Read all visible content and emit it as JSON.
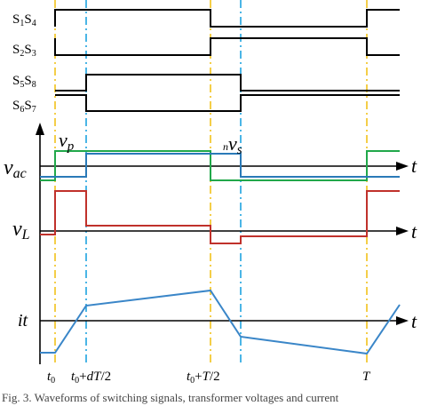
{
  "switch_labels": {
    "s1s4": {
      "main": "S1S4"
    },
    "s2s3": {
      "main": "S2S3"
    },
    "s5s8": {
      "main": "S5S8"
    },
    "s6s7": {
      "main": "S6S7"
    }
  },
  "waveform_labels": {
    "vp": "vp",
    "nvs": "nvs",
    "vac": "vac",
    "vL": "vL",
    "it": "it",
    "t": "t"
  },
  "time_labels": {
    "t0": "t0",
    "t0_dT2": "t0+dT/2",
    "t0_T2": "t0+T/2",
    "T": "T"
  },
  "caption": "Fig. 3. Waveforms of switching signals, transformer voltages and current",
  "colors": {
    "vp_green": "#21a84a",
    "vs_blue": "#2a7ab8",
    "vL_red": "#c0312b",
    "current_blue": "#3a86c8",
    "marker_yellow": "#f2c21b",
    "marker_cyan": "#1ea3e0"
  }
}
